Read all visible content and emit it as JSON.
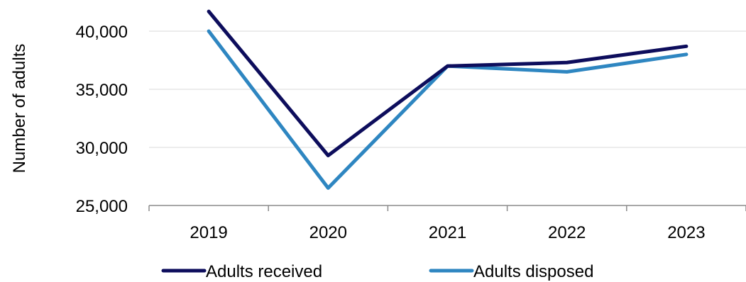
{
  "chart_data": {
    "type": "line",
    "title": "",
    "xlabel": "",
    "ylabel": "Number of adults",
    "categories": [
      "2019",
      "2020",
      "2021",
      "2022",
      "2023"
    ],
    "ylim": [
      25000,
      40000
    ],
    "yticks": [
      "25,000",
      "30,000",
      "35,000",
      "40,000"
    ],
    "ytick_values": [
      25000,
      30000,
      35000,
      40000
    ],
    "grid": true,
    "legend_position": "bottom",
    "series": [
      {
        "name": "Adults received",
        "color": "#0d0d5c",
        "values": [
          41700,
          29300,
          37000,
          37300,
          38700
        ]
      },
      {
        "name": "Adults disposed",
        "color": "#2e86c1",
        "values": [
          40000,
          26500,
          37000,
          36500,
          38000
        ]
      }
    ]
  }
}
